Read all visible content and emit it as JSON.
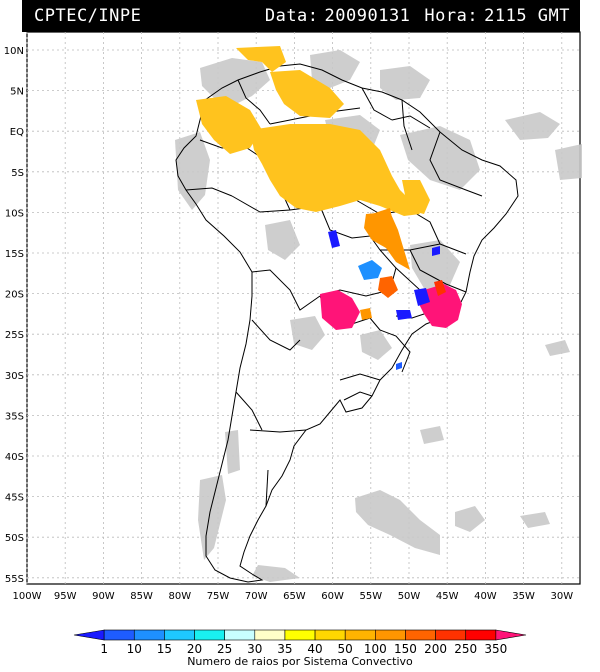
{
  "header": {
    "source": "CPTEC/INPE",
    "date_label": "Data:",
    "date_value": "20090131",
    "time_label": "Hora:",
    "time_value": "2115 GMT"
  },
  "map": {
    "lat_ticks": [
      "10N",
      "5N",
      "EQ",
      "5S",
      "10S",
      "15S",
      "20S",
      "25S",
      "30S",
      "35S",
      "40S",
      "45S",
      "50S",
      "55S"
    ],
    "lon_ticks": [
      "100W",
      "95W",
      "90W",
      "85W",
      "80W",
      "75W",
      "70W",
      "65W",
      "60W",
      "55W",
      "50W",
      "45W",
      "40W",
      "35W",
      "30W"
    ],
    "background_color": "#ffffff",
    "grid": true
  },
  "colorbar": {
    "title": "Numero de raios por Sistema Convectivo",
    "tick_labels": [
      "1",
      "10",
      "15",
      "20",
      "25",
      "30",
      "35",
      "40",
      "50",
      "100",
      "150",
      "200",
      "250",
      "350"
    ],
    "colors": [
      "#1a1aff",
      "#1e5cff",
      "#1e90ff",
      "#1ec8ff",
      "#19f0f0",
      "#c8ffff",
      "#ffffc8",
      "#ffff00",
      "#ffd700",
      "#ffb400",
      "#ff9600",
      "#ff6400",
      "#ff3200",
      "#ff0000",
      "#ff1478"
    ]
  }
}
